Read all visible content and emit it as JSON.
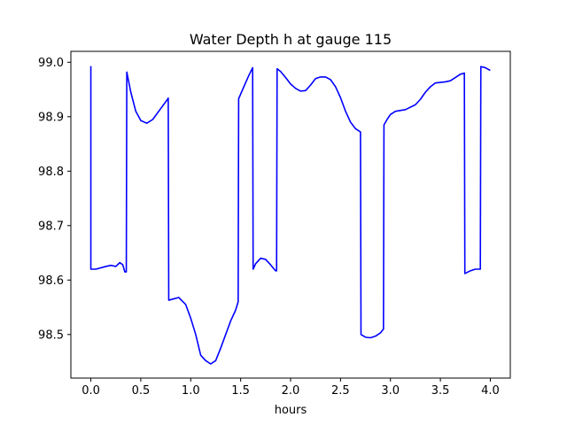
{
  "chart_data": {
    "type": "line",
    "title": "Water Depth h at gauge 115",
    "xlabel": "hours",
    "ylabel": "",
    "xlim": [
      -0.2,
      4.2
    ],
    "ylim": [
      98.42,
      99.02
    ],
    "x_ticks": [
      0.0,
      0.5,
      1.0,
      1.5,
      2.0,
      2.5,
      3.0,
      3.5,
      4.0
    ],
    "x_tick_labels": [
      "0.0",
      "0.5",
      "1.0",
      "1.5",
      "2.0",
      "2.5",
      "3.0",
      "3.5",
      "4.0"
    ],
    "y_ticks": [
      98.5,
      98.6,
      98.7,
      98.8,
      98.9,
      99.0
    ],
    "y_tick_labels": [
      "98.5",
      "98.6",
      "98.7",
      "98.8",
      "98.9",
      "99.0"
    ],
    "grid": false,
    "series": [
      {
        "color": "#0000ff",
        "points": [
          [
            0.0,
            98.993
          ],
          [
            0.0,
            98.62
          ],
          [
            0.05,
            98.62
          ],
          [
            0.15,
            98.625
          ],
          [
            0.2,
            98.627
          ],
          [
            0.25,
            98.625
          ],
          [
            0.29,
            98.632
          ],
          [
            0.32,
            98.628
          ],
          [
            0.34,
            98.615
          ],
          [
            0.355,
            98.615
          ],
          [
            0.36,
            98.982
          ],
          [
            0.4,
            98.945
          ],
          [
            0.45,
            98.91
          ],
          [
            0.5,
            98.893
          ],
          [
            0.56,
            98.888
          ],
          [
            0.62,
            98.895
          ],
          [
            0.7,
            98.915
          ],
          [
            0.76,
            98.93
          ],
          [
            0.775,
            98.934
          ],
          [
            0.78,
            98.563
          ],
          [
            0.82,
            98.565
          ],
          [
            0.88,
            98.568
          ],
          [
            0.95,
            98.555
          ],
          [
            1.0,
            98.53
          ],
          [
            1.05,
            98.5
          ],
          [
            1.1,
            98.462
          ],
          [
            1.15,
            98.452
          ],
          [
            1.2,
            98.446
          ],
          [
            1.25,
            98.452
          ],
          [
            1.3,
            98.475
          ],
          [
            1.35,
            98.5
          ],
          [
            1.4,
            98.525
          ],
          [
            1.45,
            98.545
          ],
          [
            1.475,
            98.56
          ],
          [
            1.48,
            98.933
          ],
          [
            1.52,
            98.95
          ],
          [
            1.58,
            98.975
          ],
          [
            1.62,
            98.99
          ],
          [
            1.625,
            98.62
          ],
          [
            1.65,
            98.63
          ],
          [
            1.7,
            98.64
          ],
          [
            1.75,
            98.638
          ],
          [
            1.8,
            98.628
          ],
          [
            1.85,
            98.617
          ],
          [
            1.86,
            98.617
          ],
          [
            1.865,
            98.988
          ],
          [
            1.9,
            98.983
          ],
          [
            1.95,
            98.972
          ],
          [
            2.0,
            98.96
          ],
          [
            2.05,
            98.952
          ],
          [
            2.1,
            98.947
          ],
          [
            2.15,
            98.948
          ],
          [
            2.2,
            98.958
          ],
          [
            2.25,
            98.97
          ],
          [
            2.3,
            98.973
          ],
          [
            2.35,
            98.973
          ],
          [
            2.4,
            98.968
          ],
          [
            2.45,
            98.955
          ],
          [
            2.5,
            98.935
          ],
          [
            2.55,
            98.91
          ],
          [
            2.6,
            98.89
          ],
          [
            2.65,
            98.878
          ],
          [
            2.7,
            98.872
          ],
          [
            2.705,
            98.5
          ],
          [
            2.75,
            98.495
          ],
          [
            2.8,
            98.494
          ],
          [
            2.85,
            98.497
          ],
          [
            2.9,
            98.503
          ],
          [
            2.93,
            98.51
          ],
          [
            2.935,
            98.885
          ],
          [
            2.97,
            98.896
          ],
          [
            3.0,
            98.904
          ],
          [
            3.05,
            98.91
          ],
          [
            3.15,
            98.913
          ],
          [
            3.25,
            98.922
          ],
          [
            3.3,
            98.932
          ],
          [
            3.35,
            98.945
          ],
          [
            3.4,
            98.955
          ],
          [
            3.45,
            98.962
          ],
          [
            3.55,
            98.964
          ],
          [
            3.6,
            98.966
          ],
          [
            3.65,
            98.972
          ],
          [
            3.7,
            98.978
          ],
          [
            3.74,
            98.98
          ],
          [
            3.745,
            98.612
          ],
          [
            3.8,
            98.617
          ],
          [
            3.85,
            98.62
          ],
          [
            3.9,
            98.62
          ],
          [
            3.905,
            98.992
          ],
          [
            3.95,
            98.99
          ],
          [
            4.0,
            98.985
          ]
        ]
      }
    ]
  }
}
